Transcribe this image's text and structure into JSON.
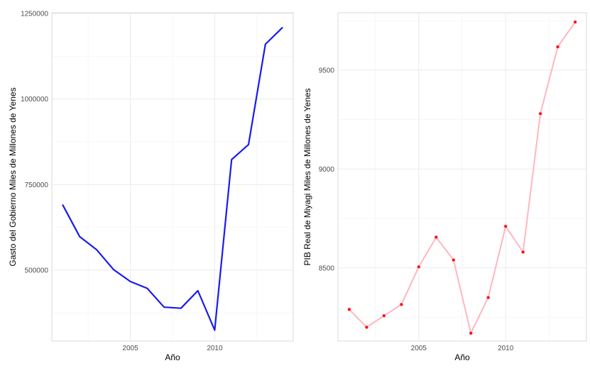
{
  "chart_data": [
    {
      "type": "line",
      "xlabel": "Año",
      "ylabel": "Gasto del Gobierno Miles de Millones de Yenes",
      "x": [
        2001,
        2002,
        2003,
        2004,
        2005,
        2006,
        2007,
        2008,
        2009,
        2010,
        2011,
        2012,
        2013,
        2014
      ],
      "series": [
        {
          "values": [
            690000,
            598000,
            560000,
            502000,
            467000,
            447000,
            392000,
            389000,
            440000,
            325000,
            823000,
            867000,
            1160000,
            1208000
          ]
        }
      ],
      "xlim": [
        2000.35,
        2014.65
      ],
      "ylim": [
        293000,
        1252000
      ],
      "x_ticks": [
        2005,
        2010
      ],
      "x_tick_labels": [
        "2005",
        "2010"
      ],
      "y_ticks": [
        500000,
        750000,
        1000000,
        1250000
      ],
      "y_tick_labels": [
        "500000",
        "750000",
        "1000000",
        "1250000"
      ],
      "grid": true,
      "line_color": "#1a1aef",
      "markers": false
    },
    {
      "type": "line",
      "xlabel": "Año",
      "ylabel": "PIB Real de Miyagi Miles de Millones de Yenes",
      "x": [
        2001,
        2002,
        2003,
        2004,
        2005,
        2006,
        2007,
        2008,
        2009,
        2010,
        2011,
        2012,
        2013,
        2014
      ],
      "series": [
        {
          "values": [
            8290,
            8200,
            8258,
            8315,
            8505,
            8655,
            8540,
            8170,
            8350,
            8710,
            8580,
            9280,
            9618,
            9743
          ]
        }
      ],
      "xlim": [
        2000.35,
        2014.65
      ],
      "ylim": [
        8130,
        9790
      ],
      "x_ticks": [
        2005,
        2010
      ],
      "x_tick_labels": [
        "2005",
        "2010"
      ],
      "y_ticks": [
        8500,
        9000,
        9500
      ],
      "y_tick_labels": [
        "8500",
        "9000",
        "9500"
      ],
      "grid": true,
      "line_color": "#ffb6c1",
      "point_color": "#ff0000",
      "markers": true
    }
  ]
}
